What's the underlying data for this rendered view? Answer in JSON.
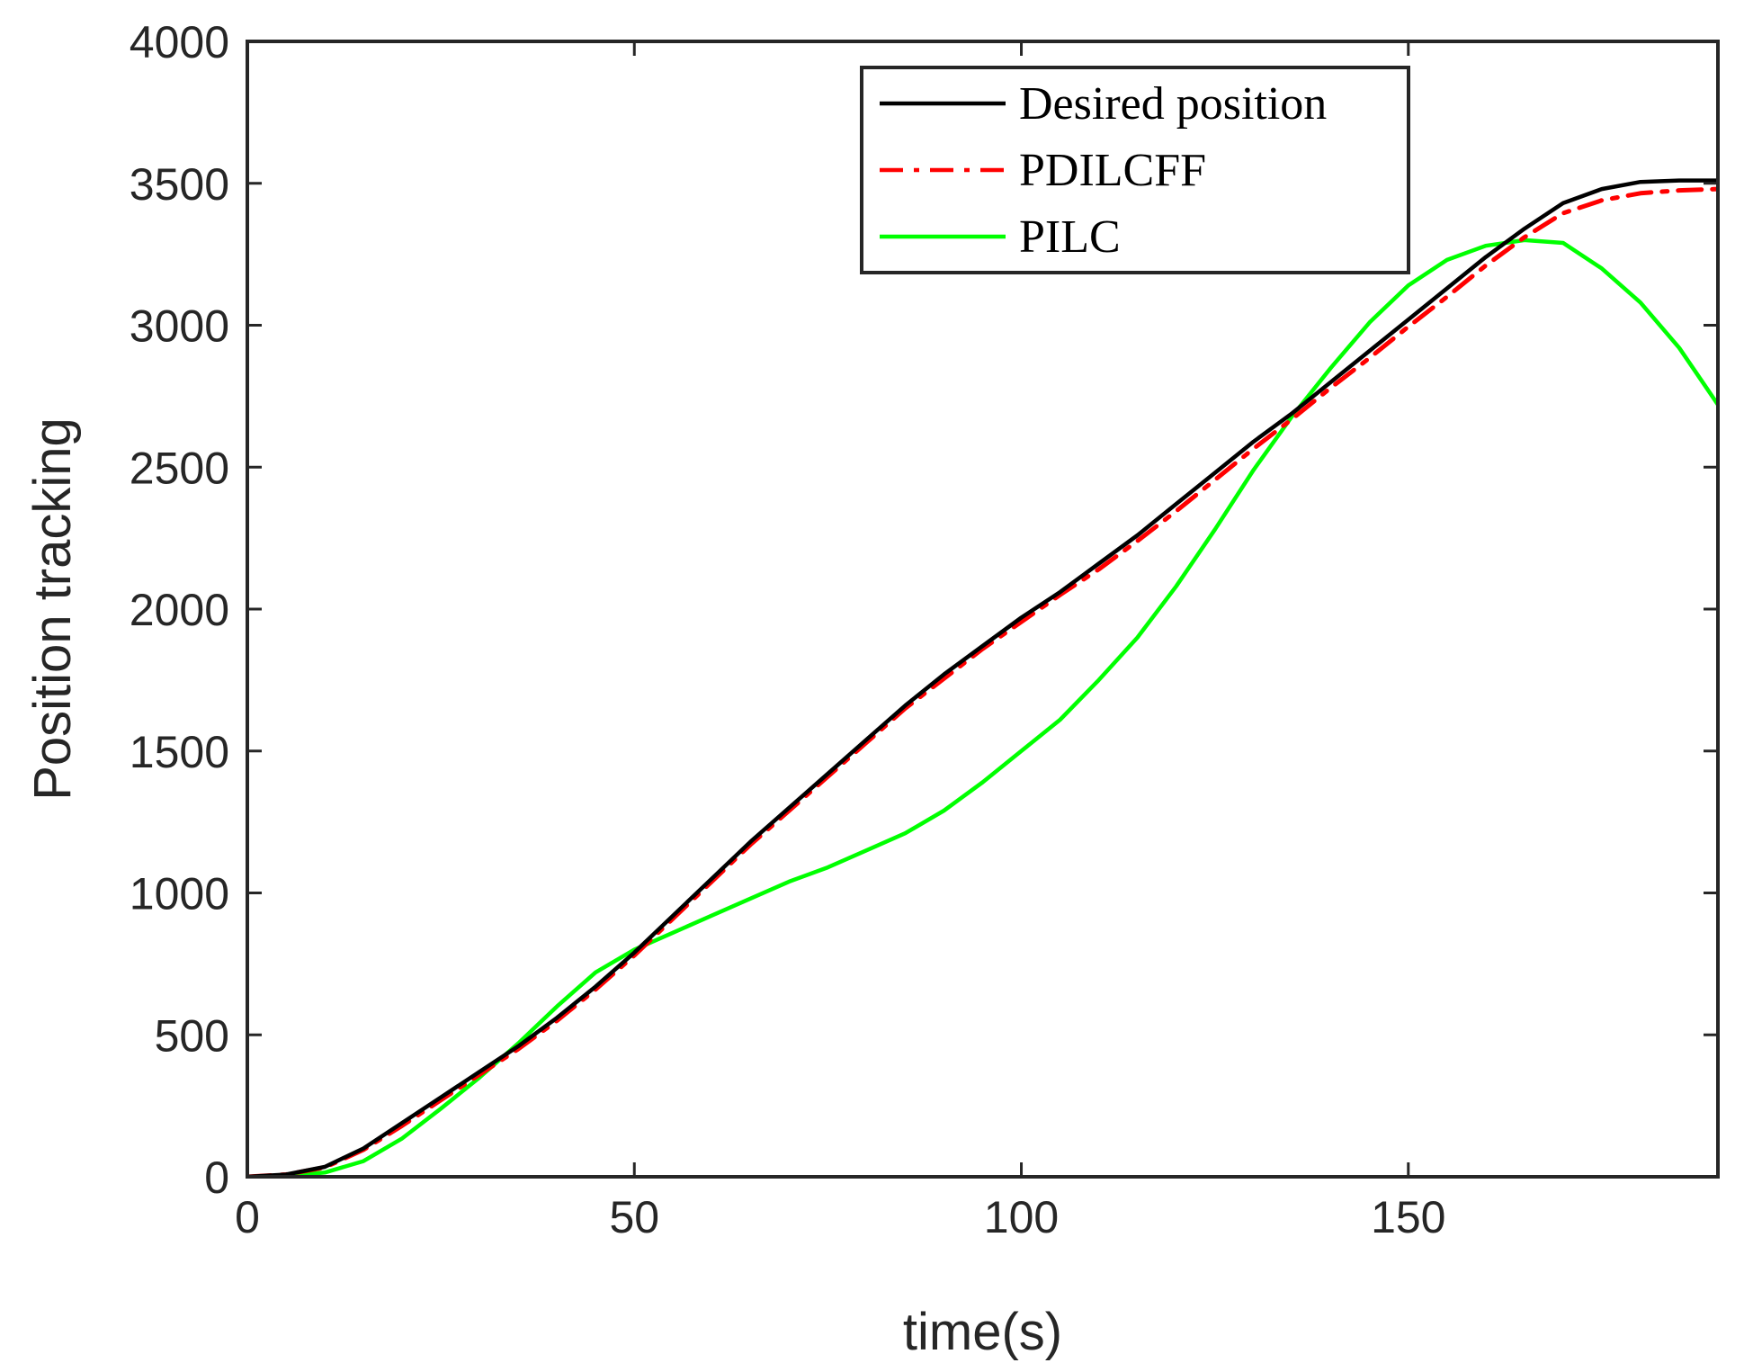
{
  "chart_data": {
    "type": "line",
    "title": "",
    "xlabel": "time(s)",
    "ylabel": "Position tracking",
    "xlim": [
      0,
      190
    ],
    "ylim": [
      0,
      4000
    ],
    "xticks": [
      0,
      50,
      100,
      150
    ],
    "xtick_labels": [
      "0",
      "50",
      "100",
      "150"
    ],
    "yticks": [
      0,
      500,
      1000,
      1500,
      2000,
      2500,
      3000,
      3500,
      4000
    ],
    "ytick_labels": [
      "0",
      "500",
      "1000",
      "1500",
      "2000",
      "2500",
      "3000",
      "3500",
      "4000"
    ],
    "grid": false,
    "legend_position": "top-right",
    "series": [
      {
        "name": "Desired position",
        "color": "#000000",
        "style": "solid",
        "x": [
          0,
          5,
          10,
          15,
          20,
          25,
          30,
          35,
          40,
          45,
          50,
          55,
          60,
          65,
          70,
          75,
          80,
          85,
          90,
          95,
          100,
          105,
          110,
          115,
          120,
          125,
          130,
          135,
          140,
          145,
          150,
          155,
          160,
          165,
          170,
          175,
          180,
          185,
          190
        ],
        "y": [
          0,
          8,
          35,
          100,
          190,
          280,
          370,
          460,
          560,
          670,
          790,
          920,
          1050,
          1180,
          1300,
          1420,
          1540,
          1660,
          1770,
          1870,
          1970,
          2060,
          2160,
          2260,
          2370,
          2480,
          2590,
          2690,
          2800,
          2910,
          3020,
          3130,
          3240,
          3340,
          3430,
          3480,
          3505,
          3510,
          3510
        ]
      },
      {
        "name": "PDILCFF",
        "color": "#ff0000",
        "style": "dashdot",
        "x": [
          0,
          5,
          10,
          15,
          20,
          25,
          30,
          35,
          40,
          45,
          50,
          55,
          60,
          65,
          70,
          75,
          80,
          85,
          90,
          95,
          100,
          105,
          110,
          115,
          120,
          125,
          130,
          135,
          140,
          145,
          150,
          155,
          160,
          165,
          170,
          175,
          180,
          185,
          190
        ],
        "y": [
          0,
          8,
          33,
          95,
          180,
          270,
          360,
          450,
          550,
          660,
          780,
          910,
          1040,
          1170,
          1290,
          1410,
          1530,
          1650,
          1755,
          1860,
          1955,
          2050,
          2140,
          2240,
          2345,
          2455,
          2565,
          2670,
          2780,
          2885,
          2995,
          3100,
          3210,
          3310,
          3395,
          3440,
          3465,
          3475,
          3480
        ]
      },
      {
        "name": "PILC",
        "color": "#00ff00",
        "style": "solid",
        "x": [
          0,
          5,
          10,
          15,
          20,
          25,
          30,
          35,
          40,
          45,
          50,
          55,
          60,
          65,
          70,
          75,
          80,
          85,
          90,
          95,
          100,
          105,
          110,
          115,
          120,
          125,
          130,
          135,
          140,
          145,
          150,
          155,
          160,
          165,
          170,
          175,
          180,
          185,
          190
        ],
        "y": [
          0,
          2,
          15,
          55,
          135,
          240,
          350,
          470,
          600,
          720,
          800,
          860,
          920,
          980,
          1040,
          1090,
          1150,
          1210,
          1290,
          1390,
          1500,
          1610,
          1750,
          1900,
          2080,
          2280,
          2490,
          2680,
          2850,
          3010,
          3140,
          3230,
          3280,
          3300,
          3290,
          3200,
          3080,
          2920,
          2720
        ]
      }
    ]
  }
}
